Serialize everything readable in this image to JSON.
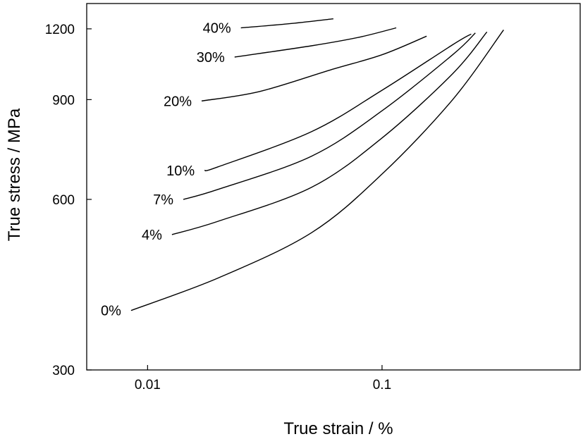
{
  "chart_data": {
    "type": "line",
    "title": "",
    "xlabel": "True strain / %",
    "ylabel": "True stress / MPa",
    "x_scale": "log",
    "y_scale": "log",
    "xlim": [
      0.0055,
      0.7
    ],
    "ylim": [
      300,
      1330
    ],
    "x_ticks": [
      0.01,
      0.1
    ],
    "x_tick_labels": [
      "0.01",
      "0.1"
    ],
    "y_ticks": [
      300,
      600,
      900,
      1200
    ],
    "y_tick_labels": [
      "300",
      "600",
      "900",
      "1200"
    ],
    "grid": false,
    "legend": "none",
    "series": [
      {
        "label": "0%",
        "x": [
          0.0085,
          0.02,
          0.05,
          0.1,
          0.2,
          0.33
        ],
        "y": [
          382,
          436,
          524,
          665,
          900,
          1195
        ]
      },
      {
        "label": "4%",
        "x": [
          0.0127,
          0.02,
          0.05,
          0.1,
          0.2,
          0.28
        ],
        "y": [
          520,
          549,
          630,
          770,
          1000,
          1185
        ]
      },
      {
        "label": "7%",
        "x": [
          0.0142,
          0.02,
          0.05,
          0.1,
          0.2,
          0.25
        ],
        "y": [
          600,
          625,
          715,
          860,
          1080,
          1180
        ]
      },
      {
        "label": "10%",
        "x": [
          0.0175,
          0.02,
          0.05,
          0.1,
          0.2,
          0.24
        ],
        "y": [
          675,
          685,
          790,
          935,
          1125,
          1175
        ]
      },
      {
        "label": "20%",
        "x": [
          0.017,
          0.03,
          0.06,
          0.1,
          0.155
        ],
        "y": [
          895,
          930,
          1015,
          1080,
          1165
        ]
      },
      {
        "label": "30%",
        "x": [
          0.0235,
          0.05,
          0.08,
          0.115
        ],
        "y": [
          1070,
          1120,
          1160,
          1205
        ]
      },
      {
        "label": "40%",
        "x": [
          0.025,
          0.04,
          0.062
        ],
        "y": [
          1205,
          1225,
          1250
        ]
      }
    ]
  }
}
